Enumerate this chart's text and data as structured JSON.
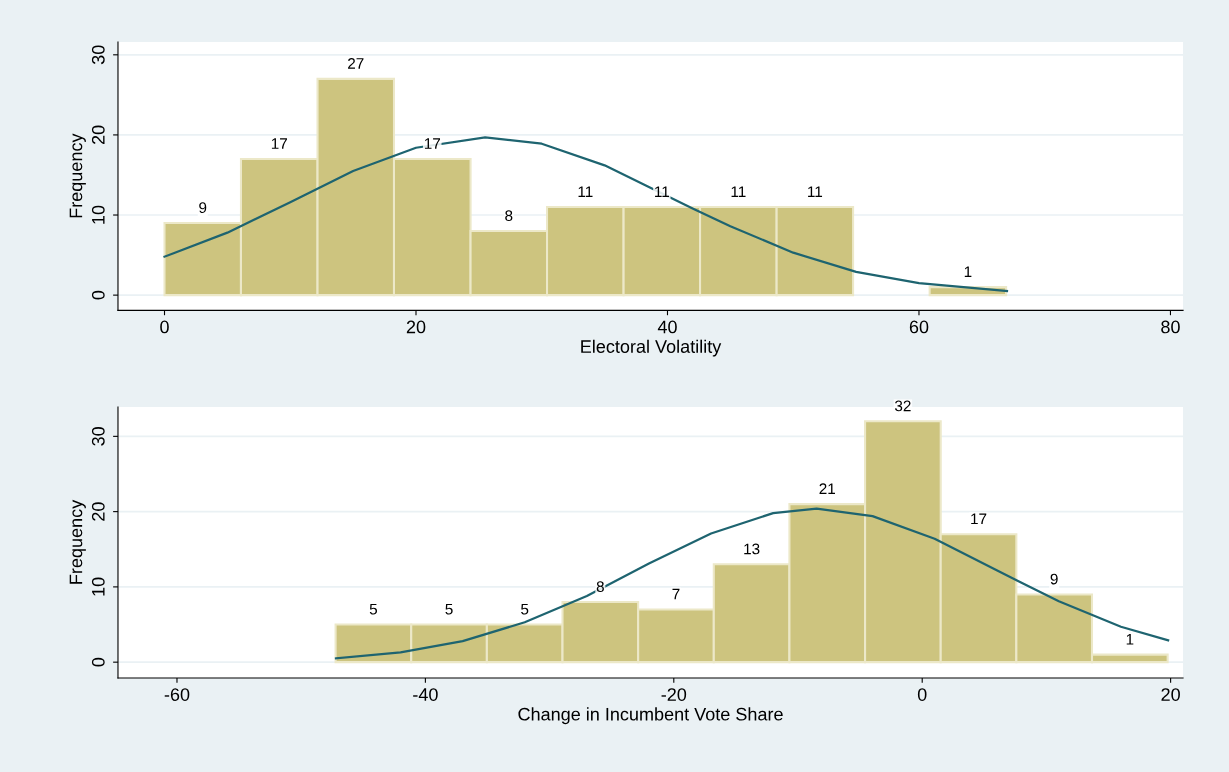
{
  "chart_data": [
    {
      "type": "histogram",
      "xlabel": "Electoral Volatility",
      "ylabel": "Frequency",
      "bins": [
        0,
        6.08,
        12.17,
        18.25,
        24.34,
        30.42,
        36.51,
        42.59,
        48.68,
        54.76,
        60.85,
        66.93
      ],
      "values": [
        9,
        17,
        27,
        17,
        8,
        11,
        11,
        11,
        11,
        0,
        1
      ],
      "value_labels": [
        "9",
        "17",
        "27",
        "17",
        "8",
        "11",
        "11",
        "11",
        "11",
        null,
        "1"
      ],
      "color": "#cdc47f",
      "series": [
        {
          "type": "line",
          "color": "#1e6470",
          "x": [
            0,
            5,
            10,
            15,
            20,
            25.5,
            30,
            35,
            42,
            45,
            50,
            55,
            60,
            67
          ],
          "values": [
            4.8,
            7.8,
            11.6,
            15.5,
            18.4,
            19.7,
            18.9,
            16.2,
            10.8,
            8.6,
            5.3,
            2.9,
            1.5,
            0.5
          ]
        }
      ],
      "xlim": [
        -3.7,
        81
      ],
      "xticks": [
        0,
        20,
        40,
        60,
        80
      ],
      "ylim": [
        -1.9,
        31.6
      ],
      "yticks": [
        0,
        10,
        20,
        30
      ],
      "grid": "y"
    },
    {
      "type": "histogram",
      "xlabel": "Change in Incumbent Vote Share",
      "ylabel": "Frequency",
      "bins": [
        -47.23,
        -41.14,
        -35.05,
        -28.96,
        -22.87,
        -16.78,
        -10.69,
        -4.6,
        1.49,
        7.58,
        13.67,
        19.76
      ],
      "values": [
        5,
        5,
        5,
        8,
        7,
        13,
        21,
        32,
        17,
        9,
        1
      ],
      "value_labels": [
        "5",
        "5",
        "5",
        "8",
        "7",
        "13",
        "21",
        "32",
        "17",
        "9",
        "1"
      ],
      "color": "#cdc47f",
      "series": [
        {
          "type": "line",
          "color": "#1e6470",
          "x": [
            -47.2,
            -42,
            -37,
            -32,
            -27,
            -22,
            -17,
            -12,
            -8.5,
            -4,
            1,
            6,
            11,
            16,
            19.8
          ],
          "values": [
            0.5,
            1.3,
            2.8,
            5.3,
            8.8,
            13.1,
            17.1,
            19.8,
            20.4,
            19.4,
            16.4,
            12.2,
            8.1,
            4.7,
            2.9
          ]
        }
      ],
      "xlim": [
        -64.75,
        21
      ],
      "xticks": [
        -60,
        -40,
        -20,
        0,
        20
      ],
      "ylim": [
        -2.1,
        33.9
      ],
      "yticks": [
        0,
        10,
        20,
        30
      ],
      "grid": "y"
    }
  ]
}
